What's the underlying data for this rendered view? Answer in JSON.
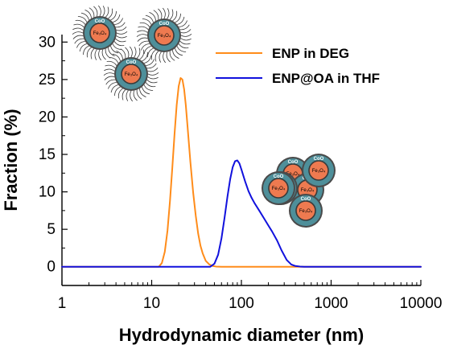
{
  "chart_data": {
    "type": "line",
    "xlabel": "Hydrodynamic diameter (nm)",
    "ylabel": "Fraction (%)",
    "xscale": "log",
    "xlim": [
      1,
      10000
    ],
    "ylim": [
      -2.5,
      31
    ],
    "x_tick_labels": [
      "1",
      "10",
      "100",
      "1000",
      "10000"
    ],
    "x_tick_values": [
      1,
      10,
      100,
      1000,
      10000
    ],
    "y_tick_labels": [
      "0",
      "5",
      "10",
      "15",
      "20",
      "25",
      "30"
    ],
    "y_tick_values": [
      0,
      5,
      10,
      15,
      20,
      25,
      30
    ],
    "grid": false,
    "legend_position": "top-right",
    "series": [
      {
        "name": "ENP in DEG",
        "color": "#ff8c1a",
        "x": [
          1,
          12,
          13,
          14,
          15,
          16,
          17,
          18,
          19,
          20,
          21,
          22,
          23,
          24,
          25,
          27,
          29,
          31,
          33,
          35,
          37,
          40,
          44,
          48,
          52,
          60,
          100,
          1000,
          10000
        ],
        "y": [
          0,
          0,
          0.5,
          2.0,
          4.8,
          8.8,
          13.3,
          17.8,
          21.6,
          24.1,
          25.2,
          25.0,
          23.7,
          21.6,
          19.0,
          14.0,
          9.9,
          6.8,
          4.4,
          2.8,
          1.8,
          0.8,
          0.3,
          0.1,
          0.03,
          0,
          0,
          0,
          0
        ]
      },
      {
        "name": "ENP@OA in THF",
        "color": "#1111dd",
        "x": [
          1,
          45,
          50,
          55,
          60,
          65,
          70,
          75,
          80,
          85,
          90,
          95,
          100,
          110,
          120,
          130,
          140,
          160,
          180,
          200,
          220,
          250,
          280,
          320,
          360,
          400,
          450,
          500,
          700,
          10000
        ],
        "y": [
          0,
          0,
          0.4,
          1.6,
          3.8,
          6.6,
          9.4,
          11.7,
          13.3,
          14.1,
          14.2,
          13.8,
          13.0,
          11.4,
          10.1,
          9.2,
          8.5,
          7.4,
          6.4,
          5.5,
          4.7,
          3.5,
          2.2,
          0.9,
          0.3,
          0.1,
          0.03,
          0,
          0,
          0
        ]
      }
    ]
  },
  "insets": {
    "shell_label": "CoO",
    "core_label": "Fe₃O₄"
  }
}
